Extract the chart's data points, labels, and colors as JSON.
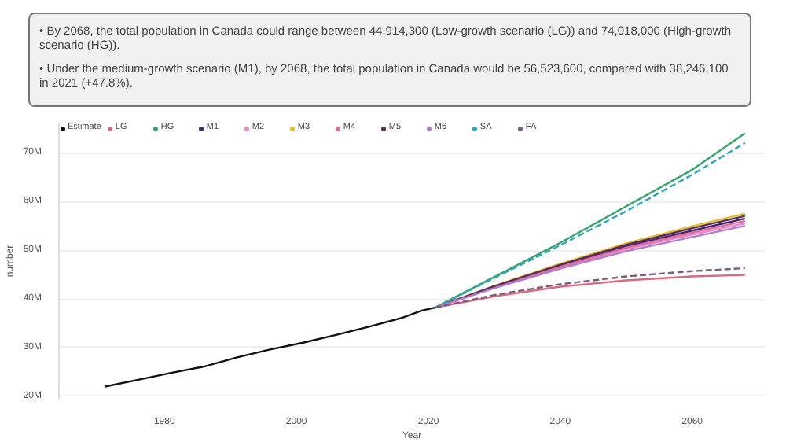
{
  "chart_data": {
    "type": "line",
    "xlabel": "Year",
    "ylabel": "number",
    "annotations": [
      "• By 2068, the total population in Canada could range between 44,914,300 (Low-growth scenario (LG)) and 74,018,000 (High-growth scenario (HG)).",
      "• Under the medium-growth scenario (M1), by 2068, the total population in Canada would be 56,523,600, compared with 38,246,100 in 2021 (+47.8%)."
    ],
    "series": [
      {
        "name": "Estimate",
        "color": "#111111",
        "x": [
          1971,
          1976,
          1981,
          1986,
          1991,
          1996,
          2001,
          2006,
          2011,
          2016,
          2019,
          2021
        ],
        "values": [
          22.0,
          23.4,
          24.8,
          26.1,
          28.0,
          29.6,
          31.0,
          32.6,
          34.3,
          36.1,
          37.6,
          38.2
        ]
      },
      {
        "name": "LG",
        "color": "#d9697e",
        "x": [
          2021,
          2030,
          2040,
          2050,
          2060,
          2068
        ],
        "values": [
          38.2,
          40.5,
          42.5,
          43.8,
          44.6,
          44.9
        ]
      },
      {
        "name": "HG",
        "color": "#3aa36b",
        "x": [
          2021,
          2030,
          2040,
          2050,
          2060,
          2068
        ],
        "values": [
          38.2,
          44.5,
          51.5,
          59.0,
          66.5,
          74.0
        ]
      },
      {
        "name": "M1",
        "color": "#3d2a6e",
        "x": [
          2021,
          2030,
          2040,
          2050,
          2060,
          2068
        ],
        "values": [
          38.2,
          42.5,
          46.8,
          50.8,
          54.0,
          56.5
        ]
      },
      {
        "name": "M2",
        "color": "#e889c8",
        "x": [
          2021,
          2030,
          2040,
          2050,
          2060,
          2068
        ],
        "values": [
          38.2,
          42.3,
          46.4,
          50.2,
          53.2,
          55.5
        ]
      },
      {
        "name": "M3",
        "color": "#e2be2c",
        "x": [
          2021,
          2030,
          2040,
          2050,
          2060,
          2068
        ],
        "values": [
          38.2,
          42.7,
          47.2,
          51.4,
          54.9,
          57.5
        ]
      },
      {
        "name": "M4",
        "color": "#df6d9c",
        "x": [
          2021,
          2030,
          2040,
          2050,
          2060,
          2068
        ],
        "values": [
          38.2,
          42.5,
          46.6,
          50.5,
          53.6,
          56.0
        ]
      },
      {
        "name": "M5",
        "color": "#5a2c5e",
        "x": [
          2021,
          2030,
          2040,
          2050,
          2060,
          2068
        ],
        "values": [
          38.2,
          42.6,
          47.0,
          51.1,
          54.5,
          57.0
        ]
      },
      {
        "name": "M6",
        "color": "#b17ccf",
        "x": [
          2021,
          2030,
          2040,
          2050,
          2060,
          2068
        ],
        "values": [
          38.2,
          42.2,
          46.2,
          49.8,
          52.7,
          55.0
        ]
      },
      {
        "name": "SA",
        "color": "#2fa5b5",
        "line_style": "dashed",
        "x": [
          2021,
          2030,
          2040,
          2050,
          2060,
          2068
        ],
        "values": [
          38.2,
          44.3,
          51.0,
          58.0,
          65.5,
          72.0
        ]
      },
      {
        "name": "FA",
        "color": "#7d5a7d",
        "line_style": "dashed",
        "x": [
          2021,
          2030,
          2040,
          2050,
          2060,
          2068
        ],
        "values": [
          38.2,
          40.8,
          43.0,
          44.6,
          45.7,
          46.3
        ]
      }
    ],
    "xlim": [
      1964,
      2071
    ],
    "xticks": [
      1980,
      2000,
      2020,
      2040,
      2060
    ],
    "ylim": [
      19.5,
      76
    ],
    "yticks": [
      {
        "value": 20,
        "label": "20M"
      },
      {
        "value": 30,
        "label": "30M"
      },
      {
        "value": 40,
        "label": "40M"
      },
      {
        "value": 50,
        "label": "50M"
      },
      {
        "value": 60,
        "label": "60M"
      },
      {
        "value": 70,
        "label": "70M"
      }
    ],
    "grid": "y",
    "legend": "top left",
    "line_style": "solid",
    "marker": "none"
  }
}
